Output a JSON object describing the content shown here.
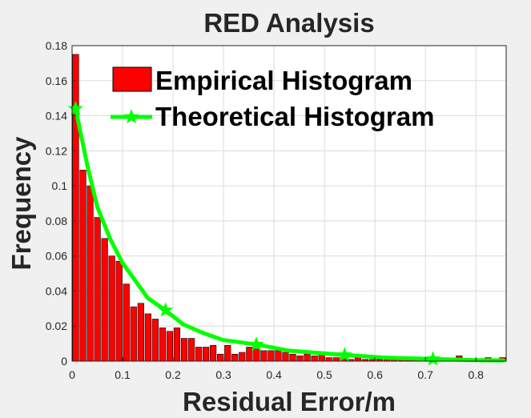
{
  "chart_data": {
    "type": "bar",
    "title": "RED Analysis",
    "xlabel": "Residual Error/m",
    "ylabel": "Frequency",
    "xlim": [
      0,
      0.86
    ],
    "ylim": [
      0,
      0.18
    ],
    "grid": true,
    "legend_position": "top-right",
    "xticks": [
      0,
      0.1,
      0.2,
      0.3,
      0.4,
      0.5,
      0.6,
      0.7,
      0.8
    ],
    "xtick_labels": [
      "0",
      "0.1",
      "0.2",
      "0.3",
      "0.4",
      "0.5",
      "0.6",
      "0.7",
      "0.8"
    ],
    "yticks": [
      0,
      0.02,
      0.04,
      0.06,
      0.08,
      0.1,
      0.12,
      0.14,
      0.16,
      0.18
    ],
    "ytick_labels": [
      "0",
      "0.02",
      "0.04",
      "0.06",
      "0.08",
      "0.1",
      "0.12",
      "0.14",
      "0.16",
      "0.18"
    ],
    "bin_width": 0.0143,
    "series": [
      {
        "name": "Empirical Histogram",
        "kind": "bar",
        "color": "#ff0000",
        "edge_color": "#000000",
        "x": [
          0.0072,
          0.0215,
          0.0358,
          0.0502,
          0.0645,
          0.0788,
          0.0932,
          0.1075,
          0.1218,
          0.1362,
          0.1505,
          0.1648,
          0.1792,
          0.1935,
          0.2078,
          0.2222,
          0.2365,
          0.2508,
          0.2652,
          0.2795,
          0.2938,
          0.3082,
          0.3225,
          0.3368,
          0.3512,
          0.3655,
          0.3798,
          0.3942,
          0.4085,
          0.4228,
          0.4372,
          0.4515,
          0.4658,
          0.4802,
          0.4945,
          0.5088,
          0.5232,
          0.5375,
          0.5518,
          0.5662,
          0.5805,
          0.5948,
          0.6092,
          0.6235,
          0.6378,
          0.6522,
          0.6665,
          0.6808,
          0.6952,
          0.7095,
          0.7238,
          0.7382,
          0.7525,
          0.7668,
          0.7812,
          0.7955,
          0.8098,
          0.8242,
          0.8385,
          0.8528
        ],
        "values": [
          0.175,
          0.109,
          0.1,
          0.082,
          0.07,
          0.06,
          0.057,
          0.044,
          0.031,
          0.033,
          0.027,
          0.024,
          0.019,
          0.017,
          0.019,
          0.013,
          0.013,
          0.008,
          0.008,
          0.009,
          0.004,
          0.009,
          0.004,
          0.005,
          0.008,
          0.007,
          0.006,
          0.006,
          0.006,
          0.005,
          0.004,
          0.003,
          0.004,
          0.003,
          0.004,
          0.002,
          0.002,
          0.002,
          0.001,
          0.002,
          0.001,
          0.001,
          0.001,
          0.001,
          0.0015,
          0.001,
          0.001,
          0.0015,
          0.001,
          0.001,
          0.001,
          0.001,
          0.001,
          0.003,
          0.001,
          0.001,
          0.001,
          0.002,
          0.001,
          0.002
        ]
      },
      {
        "name": "Theoretical Histogram",
        "kind": "line",
        "color": "#00ff00",
        "marker": "star",
        "x": [
          0.007,
          0.03,
          0.05,
          0.075,
          0.1,
          0.125,
          0.15,
          0.185,
          0.22,
          0.26,
          0.3,
          0.365,
          0.43,
          0.54,
          0.62,
          0.715,
          0.8,
          0.855
        ],
        "values": [
          0.144,
          0.112,
          0.088,
          0.07,
          0.056,
          0.046,
          0.036,
          0.029,
          0.021,
          0.016,
          0.012,
          0.0095,
          0.006,
          0.0035,
          0.002,
          0.0012,
          0.0006,
          0.0004
        ],
        "marker_x": [
          0.007,
          0.185,
          0.365,
          0.54,
          0.715
        ],
        "marker_values": [
          0.144,
          0.029,
          0.0095,
          0.0035,
          0.0012
        ]
      }
    ]
  }
}
